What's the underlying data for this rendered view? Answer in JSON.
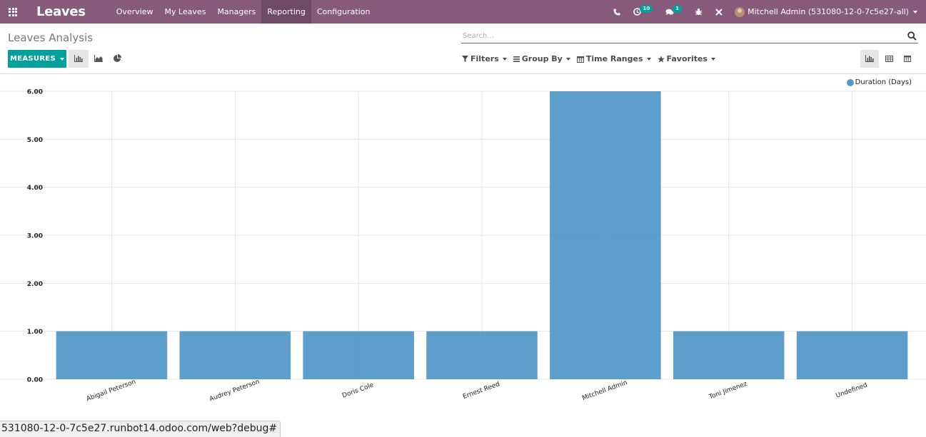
{
  "navbar": {
    "brand": "Leaves",
    "menu": [
      "Overview",
      "My Leaves",
      "Managers",
      "Reporting",
      "Configuration"
    ],
    "active_menu": "Reporting",
    "activity_badge": "10",
    "messages_badge": "1",
    "user_name": "Mitchell Admin (531080-12-0-7c5e27-all)"
  },
  "control_panel": {
    "title": "Leaves Analysis",
    "search_placeholder": "Search...",
    "measures_label": "MEASURES",
    "filters": {
      "filters_label": "Filters",
      "group_by_label": "Group By",
      "time_ranges_label": "Time Ranges",
      "favorites_label": "Favorites"
    }
  },
  "chart_data": {
    "type": "bar",
    "categories": [
      "Abigail Peterson",
      "Audrey Peterson",
      "Doris Cole",
      "Ernest Reed",
      "Mitchell Admin",
      "Toni Jimenez",
      "Undefined"
    ],
    "series": [
      {
        "name": "Duration (Days)",
        "values": [
          1,
          1,
          1,
          1,
          6,
          1,
          1
        ],
        "color": "#5499c7"
      }
    ],
    "ylim": [
      0,
      6
    ],
    "yticks": [
      "0.00",
      "1.00",
      "2.00",
      "3.00",
      "4.00",
      "5.00",
      "6.00"
    ],
    "grid": true,
    "legend_position": "top-right",
    "xlabel": "",
    "ylabel": ""
  },
  "status_url": "531080-12-0-7c5e27.runbot14.odoo.com/web?debug#"
}
